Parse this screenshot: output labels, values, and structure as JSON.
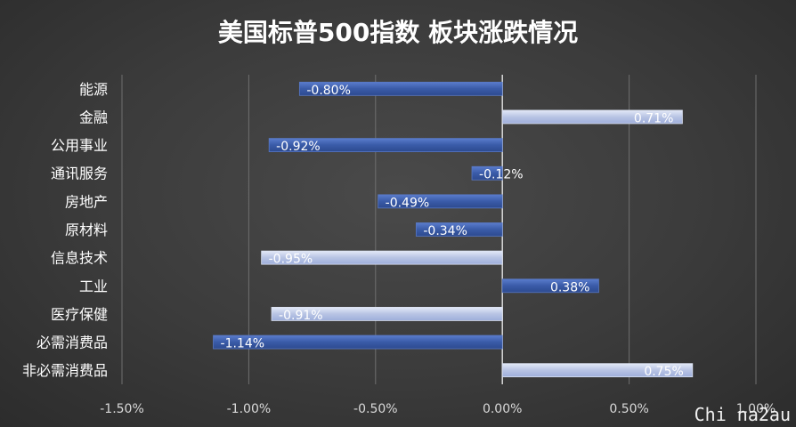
{
  "chart_data": {
    "type": "bar",
    "orientation": "horizontal",
    "title": "美国标普500指数 板块涨跌情况",
    "categories": [
      "能源",
      "金融",
      "公用事业",
      "通讯服务",
      "房地产",
      "原材料",
      "信息技术",
      "工业",
      "医疗保健",
      "必需消费品",
      "非必需消费品"
    ],
    "values": [
      -0.8,
      0.71,
      -0.92,
      -0.12,
      -0.49,
      -0.34,
      -0.95,
      0.38,
      -0.91,
      -1.14,
      0.75
    ],
    "value_labels": [
      "-0.80%",
      "0.71%",
      "-0.92%",
      "-0.12%",
      "-0.49%",
      "-0.34%",
      "-0.95%",
      "0.38%",
      "-0.91%",
      "-1.14%",
      "0.75%"
    ],
    "bar_styles": [
      "dark",
      "light",
      "dark",
      "dark",
      "dark",
      "dark",
      "light",
      "dark",
      "light",
      "dark",
      "light"
    ],
    "xlim": [
      -1.5,
      1.0
    ],
    "xticks": [
      -1.5,
      -1.0,
      -0.5,
      0.0,
      0.5,
      1.0
    ],
    "xtick_labels": [
      "-1.50%",
      "-1.00%",
      "-0.50%",
      "0.00%",
      "0.50%",
      "1.00%"
    ],
    "grid": "vertical",
    "legend": "none",
    "colors": {
      "dark_bar": "#3a5ba8",
      "dark_bar_edge": "#5878c4",
      "light_bar": "#b8c4e4",
      "light_bar_edge": "#dbe2f3",
      "grid": "#6f6f6f",
      "zero_line": "#d9d9d9"
    }
  },
  "watermark": "Chi na2au"
}
